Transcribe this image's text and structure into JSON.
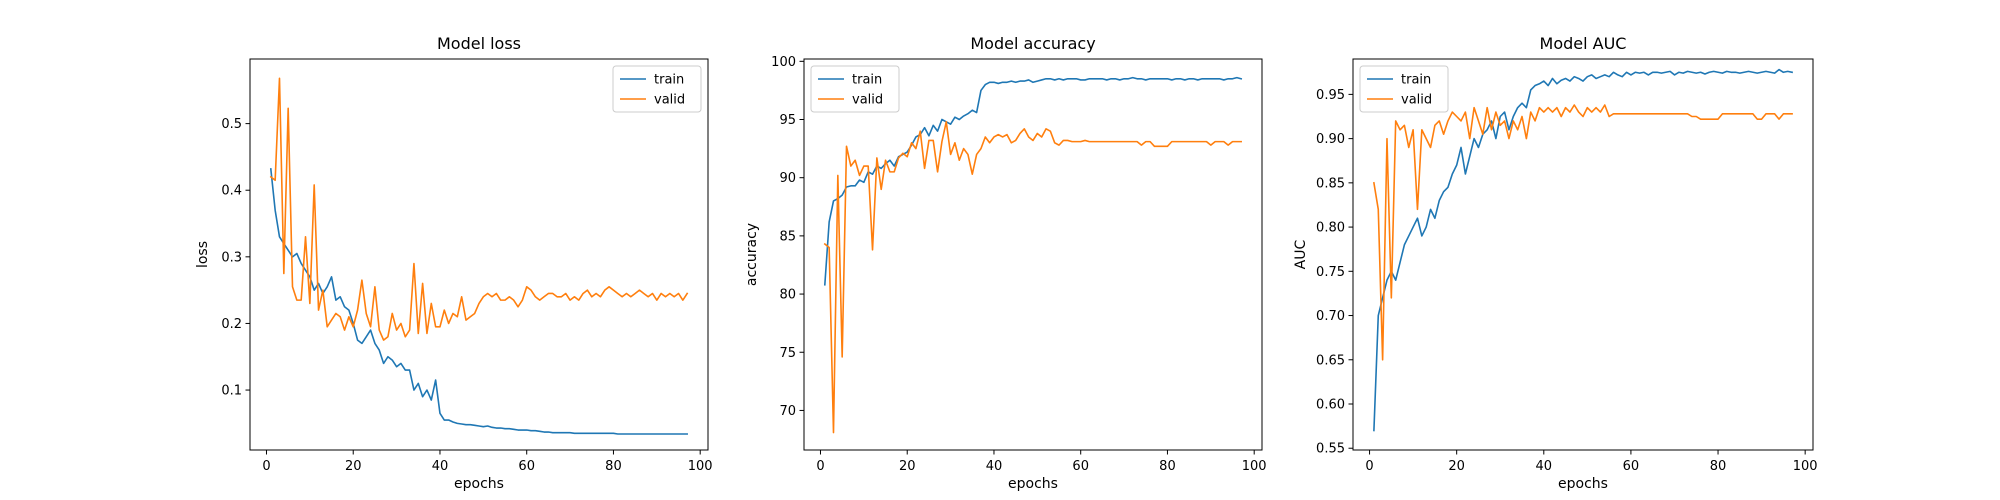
{
  "chart_data": [
    {
      "type": "line",
      "title": "Model loss",
      "xlabel": "epochs",
      "ylabel": "loss",
      "xlim": [
        -3.8,
        101.8
      ],
      "ylim": [
        0.01,
        0.597
      ],
      "xticks": [
        0,
        20,
        40,
        60,
        80,
        100
      ],
      "yticks": [
        0.1,
        0.2,
        0.3,
        0.4,
        0.5
      ],
      "ytick_labels": [
        "0.1",
        "0.2",
        "0.3",
        "0.4",
        "0.5"
      ],
      "legend": "upper right",
      "series": [
        {
          "name": "train",
          "color": "#1f77b4",
          "values": [
            0.432,
            0.37,
            0.33,
            0.32,
            0.31,
            0.3,
            0.305,
            0.29,
            0.28,
            0.27,
            0.25,
            0.26,
            0.245,
            0.255,
            0.27,
            0.235,
            0.24,
            0.225,
            0.22,
            0.2,
            0.175,
            0.17,
            0.18,
            0.19,
            0.17,
            0.16,
            0.14,
            0.15,
            0.145,
            0.135,
            0.14,
            0.13,
            0.13,
            0.1,
            0.11,
            0.09,
            0.1,
            0.085,
            0.115,
            0.065,
            0.055,
            0.055,
            0.052,
            0.05,
            0.049,
            0.048,
            0.048,
            0.047,
            0.046,
            0.045,
            0.046,
            0.044,
            0.043,
            0.043,
            0.042,
            0.042,
            0.041,
            0.04,
            0.04,
            0.04,
            0.039,
            0.039,
            0.038,
            0.037,
            0.037,
            0.036,
            0.036,
            0.036,
            0.036,
            0.036,
            0.035,
            0.035,
            0.035,
            0.035,
            0.035,
            0.035,
            0.035,
            0.035,
            0.035,
            0.035,
            0.034,
            0.034,
            0.034,
            0.034,
            0.034,
            0.034,
            0.034,
            0.034,
            0.034,
            0.034,
            0.034,
            0.034,
            0.034,
            0.034,
            0.034,
            0.034,
            0.034
          ]
        },
        {
          "name": "valid",
          "color": "#ff7f0e",
          "values": [
            0.42,
            0.415,
            0.568,
            0.275,
            0.523,
            0.255,
            0.235,
            0.235,
            0.33,
            0.23,
            0.408,
            0.22,
            0.25,
            0.195,
            0.205,
            0.215,
            0.21,
            0.19,
            0.21,
            0.195,
            0.22,
            0.265,
            0.215,
            0.195,
            0.255,
            0.19,
            0.175,
            0.18,
            0.215,
            0.19,
            0.2,
            0.18,
            0.19,
            0.29,
            0.185,
            0.26,
            0.185,
            0.23,
            0.195,
            0.195,
            0.22,
            0.2,
            0.215,
            0.21,
            0.24,
            0.205,
            0.21,
            0.215,
            0.23,
            0.24,
            0.245,
            0.24,
            0.245,
            0.235,
            0.235,
            0.24,
            0.235,
            0.225,
            0.235,
            0.255,
            0.25,
            0.24,
            0.235,
            0.24,
            0.245,
            0.245,
            0.24,
            0.24,
            0.245,
            0.235,
            0.24,
            0.235,
            0.245,
            0.25,
            0.24,
            0.245,
            0.24,
            0.25,
            0.255,
            0.25,
            0.245,
            0.24,
            0.245,
            0.24,
            0.245,
            0.25,
            0.245,
            0.24,
            0.245,
            0.235,
            0.245,
            0.24,
            0.245,
            0.24,
            0.245,
            0.235,
            0.245
          ]
        }
      ]
    },
    {
      "type": "line",
      "title": "Model accuracy",
      "xlabel": "epochs",
      "ylabel": "accuracy",
      "xlim": [
        -3.8,
        101.8
      ],
      "ylim": [
        66.6,
        100.2
      ],
      "xticks": [
        0,
        20,
        40,
        60,
        80,
        100
      ],
      "yticks": [
        70,
        75,
        80,
        85,
        90,
        95,
        100
      ],
      "ytick_labels": [
        "70",
        "75",
        "80",
        "85",
        "90",
        "95",
        "100"
      ],
      "legend": "upper left",
      "series": [
        {
          "name": "train",
          "color": "#1f77b4",
          "values": [
            80.8,
            86.2,
            88.0,
            88.2,
            88.5,
            89.2,
            89.3,
            89.3,
            89.8,
            89.6,
            90.5,
            90.3,
            91.0,
            90.8,
            91.2,
            91.5,
            91.0,
            91.8,
            92.0,
            92.2,
            92.8,
            93.5,
            93.7,
            94.3,
            93.6,
            94.5,
            94.0,
            95.0,
            94.8,
            94.6,
            95.2,
            95.0,
            95.3,
            95.5,
            95.8,
            95.6,
            97.5,
            98.0,
            98.2,
            98.2,
            98.1,
            98.2,
            98.2,
            98.3,
            98.2,
            98.3,
            98.3,
            98.4,
            98.2,
            98.3,
            98.4,
            98.5,
            98.5,
            98.4,
            98.5,
            98.4,
            98.5,
            98.5,
            98.5,
            98.4,
            98.4,
            98.5,
            98.5,
            98.5,
            98.5,
            98.4,
            98.5,
            98.5,
            98.4,
            98.5,
            98.5,
            98.6,
            98.5,
            98.5,
            98.4,
            98.5,
            98.5,
            98.5,
            98.5,
            98.5,
            98.4,
            98.5,
            98.5,
            98.4,
            98.5,
            98.5,
            98.4,
            98.5,
            98.5,
            98.5,
            98.5,
            98.5,
            98.4,
            98.5,
            98.5,
            98.6,
            98.5
          ]
        },
        {
          "name": "valid",
          "color": "#ff7f0e",
          "values": [
            84.3,
            84.0,
            68.1,
            90.2,
            74.6,
            92.7,
            91.0,
            91.5,
            90.2,
            91.0,
            91.0,
            83.8,
            91.7,
            89.0,
            91.5,
            90.5,
            90.5,
            91.7,
            92.1,
            91.8,
            93.0,
            92.5,
            94.0,
            90.8,
            93.2,
            93.2,
            90.5,
            93.1,
            94.8,
            92.0,
            93.0,
            91.5,
            92.5,
            92.0,
            90.3,
            92.0,
            92.5,
            93.5,
            93.0,
            93.5,
            93.7,
            93.5,
            93.7,
            93.0,
            93.2,
            93.8,
            94.2,
            93.5,
            93.2,
            93.8,
            93.5,
            94.2,
            94.0,
            93.0,
            92.8,
            93.2,
            93.2,
            93.1,
            93.1,
            93.1,
            93.2,
            93.1,
            93.1,
            93.1,
            93.1,
            93.1,
            93.1,
            93.1,
            93.1,
            93.1,
            93.1,
            93.1,
            93.1,
            92.8,
            93.1,
            93.1,
            92.7,
            92.7,
            92.7,
            92.7,
            93.1,
            93.1,
            93.1,
            93.1,
            93.1,
            93.1,
            93.1,
            93.1,
            93.1,
            92.8,
            93.1,
            93.1,
            93.1,
            92.8,
            93.1,
            93.1,
            93.1
          ]
        }
      ]
    },
    {
      "type": "line",
      "title": "Model AUC",
      "xlabel": "epochs",
      "ylabel": "AUC",
      "xlim": [
        -3.8,
        101.8
      ],
      "ylim": [
        0.548,
        0.99
      ],
      "xticks": [
        0,
        20,
        40,
        60,
        80,
        100
      ],
      "yticks": [
        0.55,
        0.6,
        0.65,
        0.7,
        0.75,
        0.8,
        0.85,
        0.9,
        0.95
      ],
      "ytick_labels": [
        "0.55",
        "0.60",
        "0.65",
        "0.70",
        "0.75",
        "0.80",
        "0.85",
        "0.90",
        "0.95"
      ],
      "legend": "upper left",
      "series": [
        {
          "name": "train",
          "color": "#1f77b4",
          "values": [
            0.57,
            0.7,
            0.72,
            0.74,
            0.75,
            0.74,
            0.76,
            0.78,
            0.79,
            0.8,
            0.81,
            0.79,
            0.8,
            0.82,
            0.81,
            0.83,
            0.84,
            0.845,
            0.86,
            0.87,
            0.89,
            0.86,
            0.88,
            0.9,
            0.89,
            0.905,
            0.91,
            0.92,
            0.9,
            0.925,
            0.93,
            0.91,
            0.925,
            0.935,
            0.94,
            0.935,
            0.955,
            0.96,
            0.962,
            0.965,
            0.96,
            0.968,
            0.962,
            0.966,
            0.968,
            0.965,
            0.97,
            0.968,
            0.965,
            0.97,
            0.972,
            0.968,
            0.97,
            0.972,
            0.97,
            0.975,
            0.972,
            0.97,
            0.975,
            0.972,
            0.975,
            0.974,
            0.975,
            0.972,
            0.975,
            0.975,
            0.974,
            0.975,
            0.976,
            0.972,
            0.975,
            0.974,
            0.976,
            0.975,
            0.974,
            0.975,
            0.973,
            0.975,
            0.976,
            0.975,
            0.974,
            0.976,
            0.975,
            0.975,
            0.974,
            0.975,
            0.976,
            0.975,
            0.974,
            0.975,
            0.976,
            0.975,
            0.974,
            0.978,
            0.975,
            0.976,
            0.975
          ]
        },
        {
          "name": "valid",
          "color": "#ff7f0e",
          "values": [
            0.85,
            0.82,
            0.65,
            0.9,
            0.72,
            0.92,
            0.91,
            0.915,
            0.89,
            0.91,
            0.82,
            0.91,
            0.9,
            0.89,
            0.915,
            0.92,
            0.905,
            0.92,
            0.93,
            0.925,
            0.92,
            0.93,
            0.9,
            0.935,
            0.92,
            0.905,
            0.935,
            0.91,
            0.93,
            0.915,
            0.92,
            0.9,
            0.92,
            0.91,
            0.925,
            0.9,
            0.93,
            0.92,
            0.935,
            0.93,
            0.935,
            0.93,
            0.935,
            0.925,
            0.935,
            0.93,
            0.938,
            0.93,
            0.925,
            0.935,
            0.93,
            0.935,
            0.93,
            0.938,
            0.925,
            0.928,
            0.928,
            0.928,
            0.928,
            0.928,
            0.928,
            0.928,
            0.928,
            0.928,
            0.928,
            0.928,
            0.928,
            0.928,
            0.928,
            0.928,
            0.928,
            0.928,
            0.928,
            0.925,
            0.925,
            0.922,
            0.922,
            0.922,
            0.922,
            0.922,
            0.928,
            0.928,
            0.928,
            0.928,
            0.928,
            0.928,
            0.928,
            0.928,
            0.922,
            0.922,
            0.928,
            0.928,
            0.928,
            0.922,
            0.928,
            0.928,
            0.928
          ]
        }
      ]
    }
  ]
}
